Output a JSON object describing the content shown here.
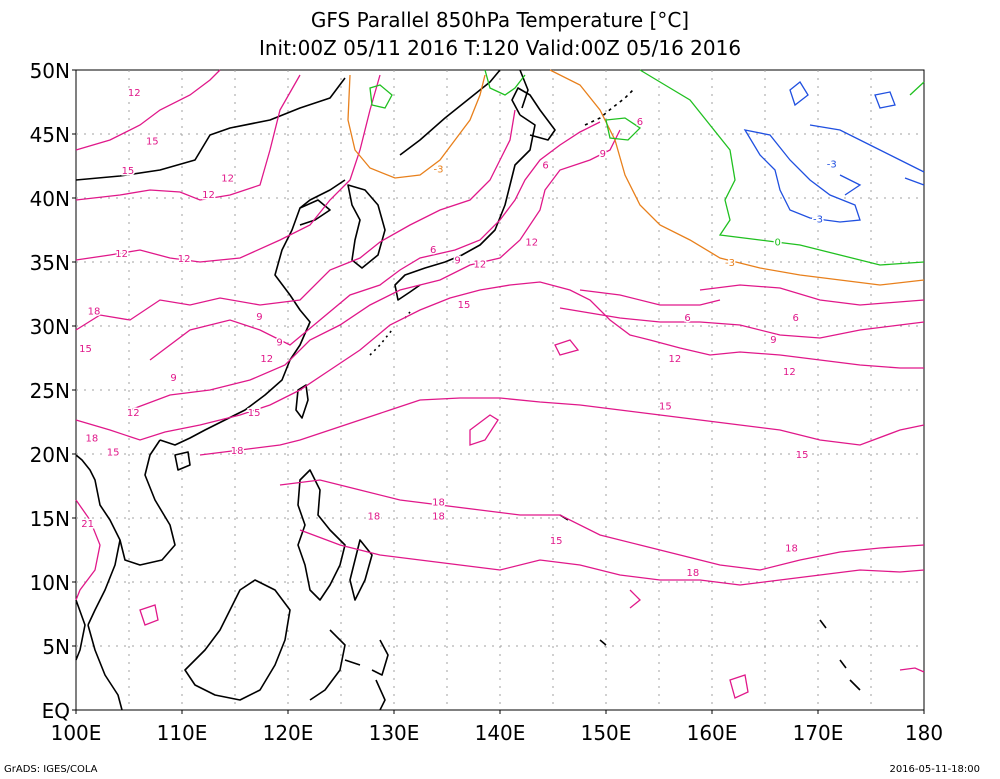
{
  "title_line1": "GFS Parallel 850hPa Temperature [°C]",
  "title_line2": "Init:00Z 05/11 2016 T:120 Valid:00Z 05/16 2016",
  "lat_labels": [
    "50N",
    "45N",
    "40N",
    "35N",
    "30N",
    "25N",
    "20N",
    "15N",
    "10N",
    "5N",
    "EQ"
  ],
  "lon_labels": [
    "100E",
    "110E",
    "120E",
    "130E",
    "140E",
    "150E",
    "160E",
    "170E",
    "180"
  ],
  "credit": "GrADS: IGES/COLA",
  "timestamp": "2016-05-11-18:00",
  "contour_labels": [
    {
      "text": "12",
      "lon": 105.5,
      "lat": 48.3,
      "color": "#e0188a"
    },
    {
      "text": "15",
      "lon": 107.2,
      "lat": 44.5,
      "color": "#e0188a"
    },
    {
      "text": "15",
      "lon": 104.9,
      "lat": 42.2,
      "color": "#e0188a"
    },
    {
      "text": "12",
      "lon": 112.5,
      "lat": 40.3,
      "color": "#e0188a"
    },
    {
      "text": "12",
      "lon": 114.3,
      "lat": 41.6,
      "color": "#e0188a"
    },
    {
      "text": "12",
      "lon": 104.3,
      "lat": 35.7,
      "color": "#e0188a"
    },
    {
      "text": "12",
      "lon": 110.2,
      "lat": 35.3,
      "color": "#e0188a"
    },
    {
      "text": "18",
      "lon": 101.7,
      "lat": 31.2,
      "color": "#e0188a"
    },
    {
      "text": "15",
      "lon": 100.9,
      "lat": 28.3,
      "color": "#e0188a"
    },
    {
      "text": "9",
      "lon": 117.3,
      "lat": 30.8,
      "color": "#e0188a"
    },
    {
      "text": "9",
      "lon": 109.2,
      "lat": 26.0,
      "color": "#e0188a"
    },
    {
      "text": "9",
      "lon": 119.2,
      "lat": 28.8,
      "color": "#e0188a"
    },
    {
      "text": "12",
      "lon": 118.0,
      "lat": 27.5,
      "color": "#e0188a"
    },
    {
      "text": "12",
      "lon": 105.4,
      "lat": 23.3,
      "color": "#e0188a"
    },
    {
      "text": "15",
      "lon": 116.8,
      "lat": 23.3,
      "color": "#e0188a"
    },
    {
      "text": "18",
      "lon": 101.5,
      "lat": 21.3,
      "color": "#e0188a"
    },
    {
      "text": "15",
      "lon": 103.5,
      "lat": 20.2,
      "color": "#e0188a"
    },
    {
      "text": "18",
      "lon": 115.2,
      "lat": 20.3,
      "color": "#e0188a"
    },
    {
      "text": "21",
      "lon": 101.1,
      "lat": 14.6,
      "color": "#e0188a"
    },
    {
      "text": "6",
      "lon": 133.7,
      "lat": 36.0,
      "color": "#e0188a"
    },
    {
      "text": "9",
      "lon": 136.0,
      "lat": 35.2,
      "color": "#e0188a"
    },
    {
      "text": "12",
      "lon": 138.1,
      "lat": 34.9,
      "color": "#e0188a"
    },
    {
      "text": "15",
      "lon": 136.6,
      "lat": 31.7,
      "color": "#e0188a"
    },
    {
      "text": "6",
      "lon": 144.3,
      "lat": 42.6,
      "color": "#e0188a"
    },
    {
      "text": "9",
      "lon": 149.7,
      "lat": 43.5,
      "color": "#e0188a"
    },
    {
      "text": "6",
      "lon": 153.2,
      "lat": 46.0,
      "color": "#e0188a"
    },
    {
      "text": "12",
      "lon": 143.0,
      "lat": 36.6,
      "color": "#e0188a"
    },
    {
      "text": "-3",
      "lon": 134.2,
      "lat": 42.3,
      "color": "#e8801c"
    },
    {
      "text": "-3",
      "lon": 171.3,
      "lat": 42.7,
      "color": "#2050e0"
    },
    {
      "text": "-3",
      "lon": 170.0,
      "lat": 38.4,
      "color": "#2050e0"
    },
    {
      "text": "0",
      "lon": 166.2,
      "lat": 36.6,
      "color": "#20c020"
    },
    {
      "text": "-3",
      "lon": 161.7,
      "lat": 35.0,
      "color": "#e8801c"
    },
    {
      "text": "6",
      "lon": 157.7,
      "lat": 30.7,
      "color": "#e0188a"
    },
    {
      "text": "6",
      "lon": 167.9,
      "lat": 30.7,
      "color": "#e0188a"
    },
    {
      "text": "9",
      "lon": 165.8,
      "lat": 29.0,
      "color": "#e0188a"
    },
    {
      "text": "12",
      "lon": 156.5,
      "lat": 27.5,
      "color": "#e0188a"
    },
    {
      "text": "12",
      "lon": 167.3,
      "lat": 26.5,
      "color": "#e0188a"
    },
    {
      "text": "15",
      "lon": 155.6,
      "lat": 23.8,
      "color": "#e0188a"
    },
    {
      "text": "15",
      "lon": 168.5,
      "lat": 20.0,
      "color": "#e0188a"
    },
    {
      "text": "18",
      "lon": 134.2,
      "lat": 16.3,
      "color": "#e0188a"
    },
    {
      "text": "18",
      "lon": 134.2,
      "lat": 15.2,
      "color": "#e0188a"
    },
    {
      "text": "18",
      "lon": 128.1,
      "lat": 15.2,
      "color": "#e0188a"
    },
    {
      "text": "15",
      "lon": 145.3,
      "lat": 13.3,
      "color": "#e0188a"
    },
    {
      "text": "18",
      "lon": 158.2,
      "lat": 10.8,
      "color": "#e0188a"
    },
    {
      "text": "18",
      "lon": 167.5,
      "lat": 12.7,
      "color": "#e0188a"
    }
  ]
}
